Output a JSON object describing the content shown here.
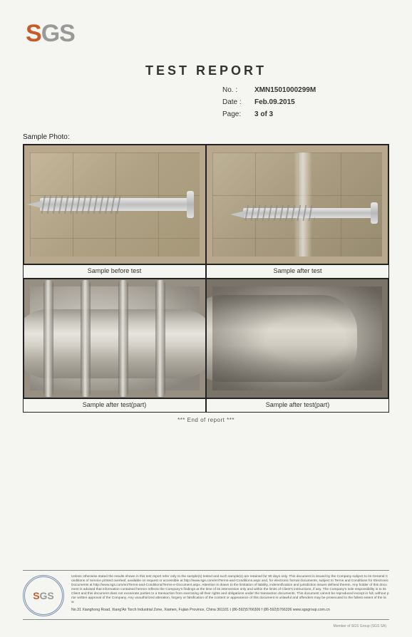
{
  "logo": {
    "letter_s": "S",
    "letter_gs": "GS"
  },
  "title": "TEST REPORT",
  "meta": {
    "no_label": "No. :",
    "no_value": "XMN1501000299M",
    "date_label": "Date :",
    "date_value": "Feb.09.2015",
    "page_label": "Page:",
    "page_value": "3 of 3"
  },
  "section_label": "Sample Photo:",
  "captions": {
    "c1": "Sample before test",
    "c2": "Sample after test",
    "c3": "Sample after test(part)",
    "c4": "Sample after test(part)"
  },
  "end_text": "*** End of report ***",
  "footer": {
    "fine_print": "Unless otherwise stated the results shown in this test report refer only to the sample(s) tested and such sample(s) are retained for 90 days only. This document is issued by the Company subject to its General Conditions of Service printed overleaf, available on request or accessible at http://www.sgs.com/en/Terms-and-Conditions.aspx and, for electronic format documents, subject to Terms and Conditions for Electronic Documents at http://www.sgs.com/en/Terms-and-Conditions/Terms-e-Document.aspx. Attention is drawn to the limitation of liability, indemnification and jurisdiction issues defined therein. Any holder of this document is advised that information contained hereon reflects the Company's findings at the time of its intervention only and within the limits of Client's instructions, if any. The Company's sole responsibility is to its Client and this document does not exonerate parties to a transaction from exercising all their rights and obligations under the transaction documents. This document cannot be reproduced except in full, without prior written approval of the Company. Any unauthorized alteration, forgery or falsification of the content or appearance of this document is unlawful and offenders may be prosecuted to the fullest extent of the law.",
    "sub_line": "No.31 Xianghong Road, Xiang'An Torch Industrial Zone, Xiamen, Fujian Province, China 361101    t (86-592)5766306    f (86-592)5766336    www.sgsgroup.com.cn"
  },
  "bottom_right": "Member of SGS Group (SGS SA)",
  "colors": {
    "orange": "#c85a2a",
    "grey": "#999999"
  }
}
